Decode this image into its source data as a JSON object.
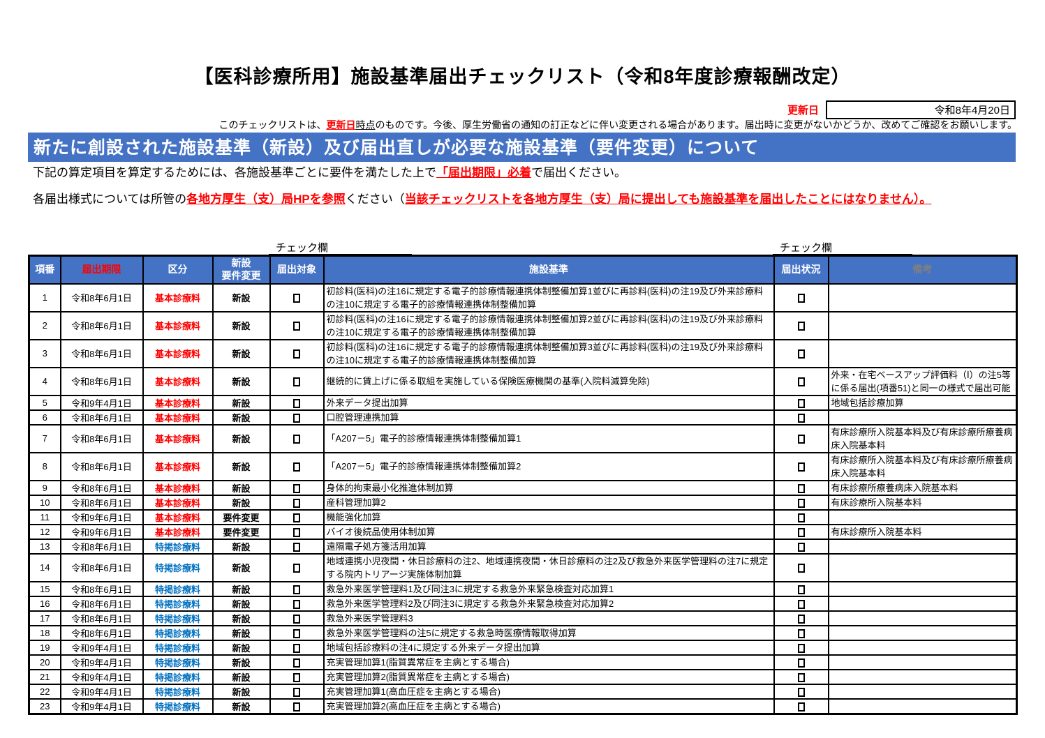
{
  "title": "【医科診療所用】施設基準届出チェックリスト（令和8年度診療報酬改定）",
  "update": {
    "label": "更新日",
    "value": "令和8年4月20日"
  },
  "notice": {
    "pre": "このチェックリストは、",
    "red": "更新日",
    "underlined": "時点",
    "post": "のものです。今後、厚生労働省の通知の訂正などに伴い変更される場合があります。届出時に変更がないかどうか、改めてご確認をお願いします。"
  },
  "banner": "新たに創設された施設基準（新設）及び届出直しが必要な施設基準（要件変更）について",
  "para1": {
    "pre": "下記の算定項目を算定するためには、各施設基準ごとに要件を満たした上で",
    "red": "「届出期限」必着",
    "post": "で届出ください。"
  },
  "para2": {
    "pre": "各届出様式については所管の",
    "red1": "各地方厚生（支）局HPを参照",
    "mid": "ください（",
    "red2": "当該チェックリストを各地方厚生（支）局に提出しても施設基準を届出したことにはなりません）。",
    "post": ""
  },
  "check_label_left": "チェック欄",
  "check_label_right": "チェック欄",
  "colors": {
    "accent_blue": "#4472C4",
    "highlight_orange": "#F4B183",
    "highlight_green": "#C6E0B4",
    "alert_red": "#FF0000",
    "category_blue": "#0070C0",
    "remark_gray": "#808080"
  },
  "table": {
    "headers": {
      "no": "項番",
      "deadline": "届出期限",
      "category": "区分",
      "type": "新設\n要件変更",
      "target": "届出対象",
      "standard": "施設基準",
      "status": "届出状況",
      "remark": "備考"
    },
    "rows": [
      {
        "no": "1",
        "deadline": "令和8年6月1日",
        "category": "基本診療料",
        "category_key": "basic",
        "type": "新設",
        "type_key": "new",
        "standard": "初診料(医科)の注16に規定する電子的診療情報連携体制整備加算1並びに再診料(医科)の注19及び外来診療料の注10に規定する電子的診療情報連携体制整備加算",
        "remark": ""
      },
      {
        "no": "2",
        "deadline": "令和8年6月1日",
        "category": "基本診療料",
        "category_key": "basic",
        "type": "新設",
        "type_key": "new",
        "standard": "初診料(医科)の注16に規定する電子的診療情報連携体制整備加算2並びに再診料(医科)の注19及び外来診療料の注10に規定する電子的診療情報連携体制整備加算",
        "remark": ""
      },
      {
        "no": "3",
        "deadline": "令和8年6月1日",
        "category": "基本診療料",
        "category_key": "basic",
        "type": "新設",
        "type_key": "new",
        "standard": "初診料(医科)の注16に規定する電子的診療情報連携体制整備加算3並びに再診料(医科)の注19及び外来診療料の注10に規定する電子的診療情報連携体制整備加算",
        "remark": ""
      },
      {
        "no": "4",
        "deadline": "令和8年6月1日",
        "category": "基本診療料",
        "category_key": "basic",
        "type": "新設",
        "type_key": "new",
        "standard": "継続的に賃上げに係る取組を実施している保険医療機関の基準(入院料減算免除)",
        "remark": "外来・在宅ベースアップ評価料（Ⅰ）の注5等に係る届出(項番51)と同一の様式で届出可能"
      },
      {
        "no": "5",
        "deadline": "令和9年4月1日",
        "category": "基本診療料",
        "category_key": "basic",
        "type": "新設",
        "type_key": "new",
        "standard": "外来データ提出加算",
        "remark": "地域包括診療加算"
      },
      {
        "no": "6",
        "deadline": "令和8年6月1日",
        "category": "基本診療料",
        "category_key": "basic",
        "type": "新設",
        "type_key": "new",
        "standard": "口腔管理連携加算",
        "remark": ""
      },
      {
        "no": "7",
        "deadline": "令和8年6月1日",
        "category": "基本診療料",
        "category_key": "basic",
        "type": "新設",
        "type_key": "new",
        "standard": "「A207－5」電子的診療情報連携体制整備加算1",
        "remark": "有床診療所入院基本料及び有床診療所療養病床入院基本料"
      },
      {
        "no": "8",
        "deadline": "令和8年6月1日",
        "category": "基本診療料",
        "category_key": "basic",
        "type": "新設",
        "type_key": "new",
        "standard": "「A207－5」電子的診療情報連携体制整備加算2",
        "remark": "有床診療所入院基本料及び有床診療所療養病床入院基本料"
      },
      {
        "no": "9",
        "deadline": "令和8年6月1日",
        "category": "基本診療料",
        "category_key": "basic",
        "type": "新設",
        "type_key": "new",
        "standard": "身体的拘束最小化推進体制加算",
        "remark": "有床診療所療養病床入院基本料"
      },
      {
        "no": "10",
        "deadline": "令和8年6月1日",
        "category": "基本診療料",
        "category_key": "basic",
        "type": "新設",
        "type_key": "new",
        "standard": "産科管理加算2",
        "remark": "有床診療所入院基本料"
      },
      {
        "no": "11",
        "deadline": "令和9年6月1日",
        "category": "基本診療料",
        "category_key": "basic",
        "type": "要件変更",
        "type_key": "change",
        "standard": "機能強化加算",
        "remark": ""
      },
      {
        "no": "12",
        "deadline": "令和9年6月1日",
        "category": "基本診療料",
        "category_key": "basic",
        "type": "要件変更",
        "type_key": "change",
        "standard": "バイオ後続品使用体制加算",
        "remark": "有床診療所入院基本料"
      },
      {
        "no": "13",
        "deadline": "令和8年6月1日",
        "category": "特掲診療料",
        "category_key": "special",
        "type": "新設",
        "type_key": "new",
        "standard": "遠隔電子処方箋活用加算",
        "remark": ""
      },
      {
        "no": "14",
        "deadline": "令和8年6月1日",
        "category": "特掲診療料",
        "category_key": "special",
        "type": "新設",
        "type_key": "new",
        "standard": "地域連携小児夜間・休日診療料の注2、地域連携夜間・休日診療料の注2及び救急外来医学管理料の注7に規定する院内トリアージ実施体制加算",
        "remark": ""
      },
      {
        "no": "15",
        "deadline": "令和8年6月1日",
        "category": "特掲診療料",
        "category_key": "special",
        "type": "新設",
        "type_key": "new",
        "standard": "救急外来医学管理料1及び同注3に規定する救急外来緊急検査対応加算1",
        "remark": ""
      },
      {
        "no": "16",
        "deadline": "令和8年6月1日",
        "category": "特掲診療料",
        "category_key": "special",
        "type": "新設",
        "type_key": "new",
        "standard": "救急外来医学管理料2及び同注3に規定する救急外来緊急検査対応加算2",
        "remark": ""
      },
      {
        "no": "17",
        "deadline": "令和8年6月1日",
        "category": "特掲診療料",
        "category_key": "special",
        "type": "新設",
        "type_key": "new",
        "standard": "救急外来医学管理料3",
        "remark": ""
      },
      {
        "no": "18",
        "deadline": "令和8年6月1日",
        "category": "特掲診療料",
        "category_key": "special",
        "type": "新設",
        "type_key": "new",
        "standard": "救急外来医学管理料の注5に規定する救急時医療情報取得加算",
        "remark": ""
      },
      {
        "no": "19",
        "deadline": "令和9年4月1日",
        "category": "特掲診療料",
        "category_key": "special",
        "type": "新設",
        "type_key": "new",
        "standard": "地域包括診療料の注4に規定する外来データ提出加算",
        "remark": ""
      },
      {
        "no": "20",
        "deadline": "令和9年4月1日",
        "category": "特掲診療料",
        "category_key": "special",
        "type": "新設",
        "type_key": "new",
        "standard": "充実管理加算1(脂質異常症を主病とする場合)",
        "remark": ""
      },
      {
        "no": "21",
        "deadline": "令和9年4月1日",
        "category": "特掲診療料",
        "category_key": "special",
        "type": "新設",
        "type_key": "new",
        "standard": "充実管理加算2(脂質異常症を主病とする場合)",
        "remark": ""
      },
      {
        "no": "22",
        "deadline": "令和9年4月1日",
        "category": "特掲診療料",
        "category_key": "special",
        "type": "新設",
        "type_key": "new",
        "standard": "充実管理加算1(高血圧症を主病とする場合)",
        "remark": ""
      },
      {
        "no": "23",
        "deadline": "令和9年4月1日",
        "category": "特掲診療料",
        "category_key": "special",
        "type": "新設",
        "type_key": "new",
        "standard": "充実管理加算2(高血圧症を主病とする場合)",
        "remark": ""
      }
    ]
  }
}
